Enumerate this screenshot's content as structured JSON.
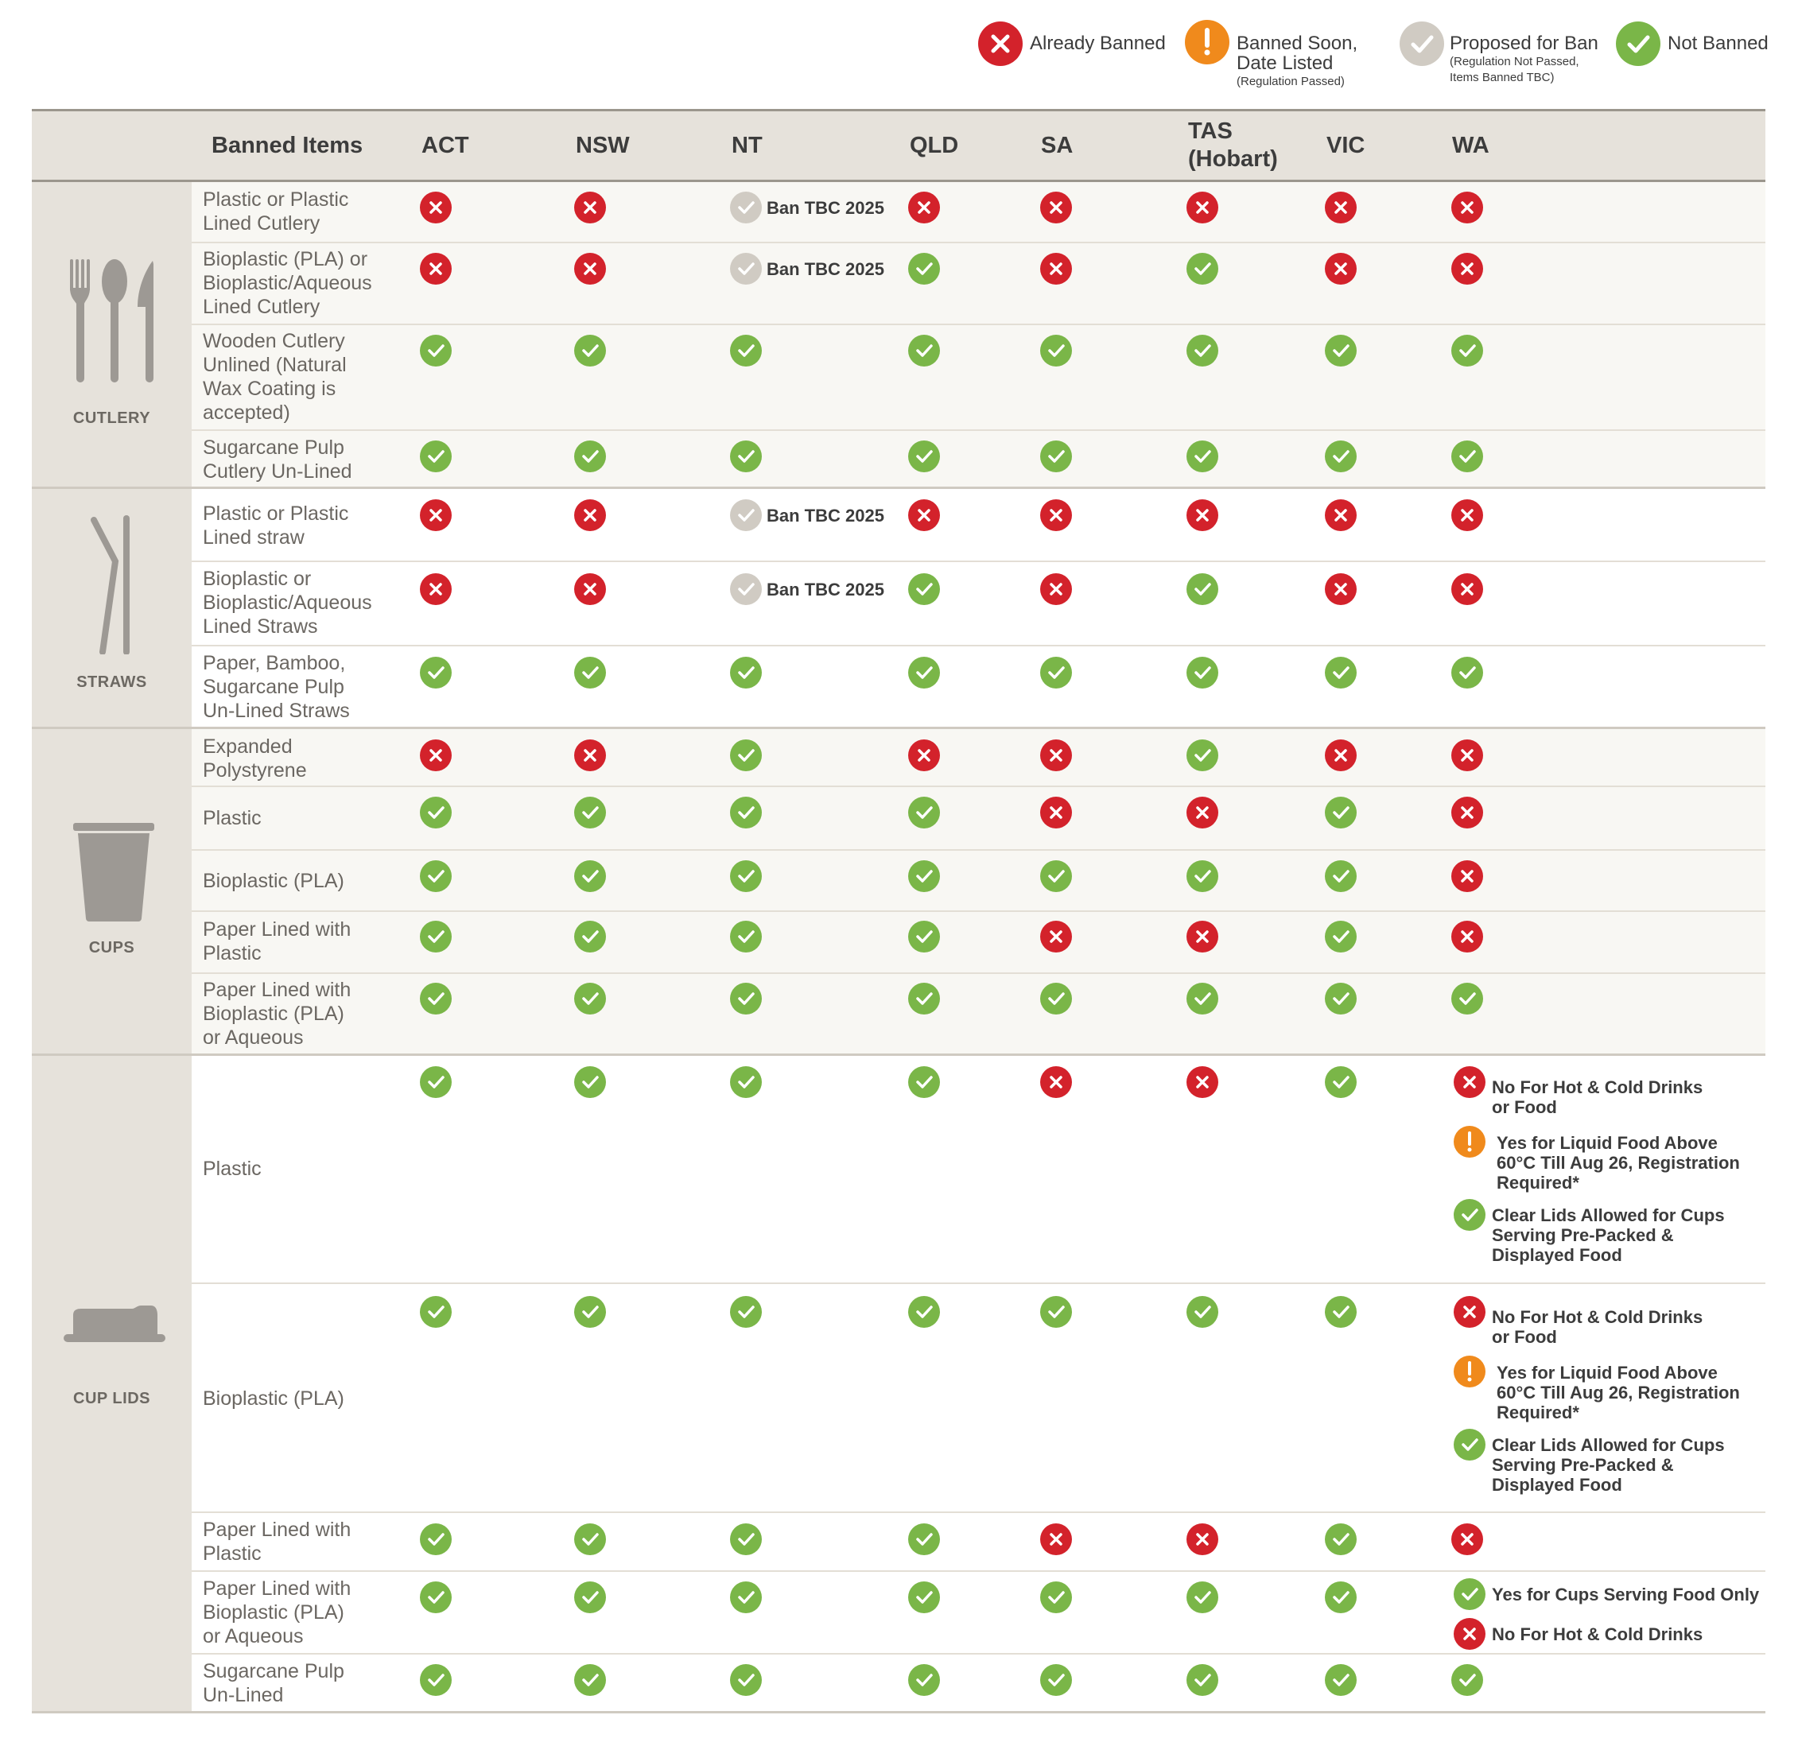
{
  "colors": {
    "banned": "#d3222b",
    "not_banned": "#7ab648",
    "soon": "#f08a1c",
    "proposed": "#d0cbc3"
  },
  "legend": {
    "banned": {
      "label": "Already Banned",
      "icon": "x-icon"
    },
    "soon": {
      "label": "Banned Soon,",
      "label2": "Date Listed",
      "sub": "(Regulation Passed)",
      "icon": "exclamation-icon"
    },
    "proposed": {
      "label": "Proposed for Ban",
      "sub": "(Regulation Not Passed,",
      "sub2": "Items Banned TBC)",
      "icon": "check-icon"
    },
    "not_banned": {
      "label": "Not Banned",
      "icon": "check-icon"
    }
  },
  "header": {
    "items": "Banned Items",
    "act": "ACT",
    "nsw": "NSW",
    "nt": "NT",
    "qld": "QLD",
    "sa": "SA",
    "tas_1": "TAS",
    "tas_2": "(Hobart)",
    "vic": "VIC",
    "wa": "WA"
  },
  "categories": {
    "cutlery": "CUTLERY",
    "straws": "STRAWS",
    "cups": "CUPS",
    "cup_lids": "CUP LIDS"
  },
  "items": {
    "cutlery_plastic": [
      "Plastic or Plastic",
      "Lined Cutlery"
    ],
    "cutlery_bio": [
      "Bioplastic (PLA) or",
      "Bioplastic/Aqueous",
      "Lined Cutlery"
    ],
    "cutlery_wood": [
      "Wooden Cutlery",
      "Unlined (Natural",
      "Wax Coating is",
      "accepted)"
    ],
    "cutlery_sugar": [
      "Sugarcane Pulp",
      "Cutlery Un-Lined"
    ],
    "straw_plastic": [
      "Plastic or Plastic",
      "Lined straw"
    ],
    "straw_bio": [
      "Bioplastic or",
      "Bioplastic/Aqueous",
      "Lined Straws"
    ],
    "straw_paper": [
      "Paper, Bamboo,",
      "Sugarcane Pulp",
      "Un-Lined Straws"
    ],
    "cup_eps": [
      "Expanded",
      "Polystyrene"
    ],
    "cup_plastic": [
      "Plastic"
    ],
    "cup_pla": [
      "Bioplastic (PLA)"
    ],
    "cup_paper_plastic": [
      "Paper Lined with",
      "Plastic"
    ],
    "cup_paper_pla": [
      "Paper Lined with",
      "Bioplastic (PLA)",
      "or Aqueous"
    ],
    "lid_plastic": [
      "Plastic"
    ],
    "lid_pla": [
      "Bioplastic (PLA)"
    ],
    "lid_paper_plastic": [
      "Paper Lined with",
      "Plastic"
    ],
    "lid_paper_pla": [
      "Paper Lined with",
      "Bioplastic (PLA)",
      "or Aqueous"
    ],
    "lid_sugar": [
      "Sugarcane Pulp",
      "Un-Lined"
    ]
  },
  "ban_tbc": "Ban TBC 2025",
  "notes": {
    "no_hot_cold": [
      "No For Hot & Cold Drinks",
      "or Food"
    ],
    "liquid_food": [
      "Yes for Liquid Food Above",
      "60°C Till Aug 26, Registration",
      "Required*"
    ],
    "clear_lids": [
      "Clear Lids Allowed for Cups",
      "Serving Pre-Packed &",
      "Displayed Food"
    ],
    "cups_food_only": "Yes for Cups Serving Food Only",
    "no_hot_cold_short": "No For Hot & Cold Drinks"
  },
  "statuses": {
    "columns": [
      "ACT",
      "NSW",
      "NT",
      "QLD",
      "SA",
      "TAS (Hobart)",
      "VIC",
      "WA"
    ],
    "rows": {
      "cutlery_plastic": [
        "banned",
        "banned",
        "proposed",
        "banned",
        "banned",
        "banned",
        "banned",
        "banned"
      ],
      "cutlery_bio": [
        "banned",
        "banned",
        "proposed",
        "not_banned",
        "banned",
        "not_banned",
        "banned",
        "banned"
      ],
      "cutlery_wood": [
        "not_banned",
        "not_banned",
        "not_banned",
        "not_banned",
        "not_banned",
        "not_banned",
        "not_banned",
        "not_banned"
      ],
      "cutlery_sugar": [
        "not_banned",
        "not_banned",
        "not_banned",
        "not_banned",
        "not_banned",
        "not_banned",
        "not_banned",
        "not_banned"
      ],
      "straw_plastic": [
        "banned",
        "banned",
        "proposed",
        "banned",
        "banned",
        "banned",
        "banned",
        "banned"
      ],
      "straw_bio": [
        "banned",
        "banned",
        "proposed",
        "not_banned",
        "banned",
        "not_banned",
        "banned",
        "banned"
      ],
      "straw_paper": [
        "not_banned",
        "not_banned",
        "not_banned",
        "not_banned",
        "not_banned",
        "not_banned",
        "not_banned",
        "not_banned"
      ],
      "cup_eps": [
        "banned",
        "banned",
        "not_banned",
        "banned",
        "banned",
        "not_banned",
        "banned",
        "banned"
      ],
      "cup_plastic": [
        "not_banned",
        "not_banned",
        "not_banned",
        "not_banned",
        "banned",
        "banned",
        "not_banned",
        "banned"
      ],
      "cup_pla": [
        "not_banned",
        "not_banned",
        "not_banned",
        "not_banned",
        "not_banned",
        "not_banned",
        "not_banned",
        "banned"
      ],
      "cup_paper_plastic": [
        "not_banned",
        "not_banned",
        "not_banned",
        "not_banned",
        "banned",
        "banned",
        "not_banned",
        "banned"
      ],
      "cup_paper_pla": [
        "not_banned",
        "not_banned",
        "not_banned",
        "not_banned",
        "not_banned",
        "not_banned",
        "not_banned",
        "not_banned"
      ],
      "lid_plastic": [
        "not_banned",
        "not_banned",
        "not_banned",
        "not_banned",
        "banned",
        "banned",
        "not_banned",
        "banned / soon / not_banned"
      ],
      "lid_pla": [
        "not_banned",
        "not_banned",
        "not_banned",
        "not_banned",
        "not_banned",
        "not_banned",
        "not_banned",
        "banned / soon / not_banned"
      ],
      "lid_paper_plastic": [
        "not_banned",
        "not_banned",
        "not_banned",
        "not_banned",
        "banned",
        "banned",
        "not_banned",
        "banned"
      ],
      "lid_paper_pla": [
        "not_banned",
        "not_banned",
        "not_banned",
        "not_banned",
        "not_banned",
        "not_banned",
        "not_banned",
        "not_banned / banned"
      ],
      "lid_sugar": [
        "not_banned",
        "not_banned",
        "not_banned",
        "not_banned",
        "not_banned",
        "not_banned",
        "not_banned",
        "not_banned"
      ]
    }
  }
}
